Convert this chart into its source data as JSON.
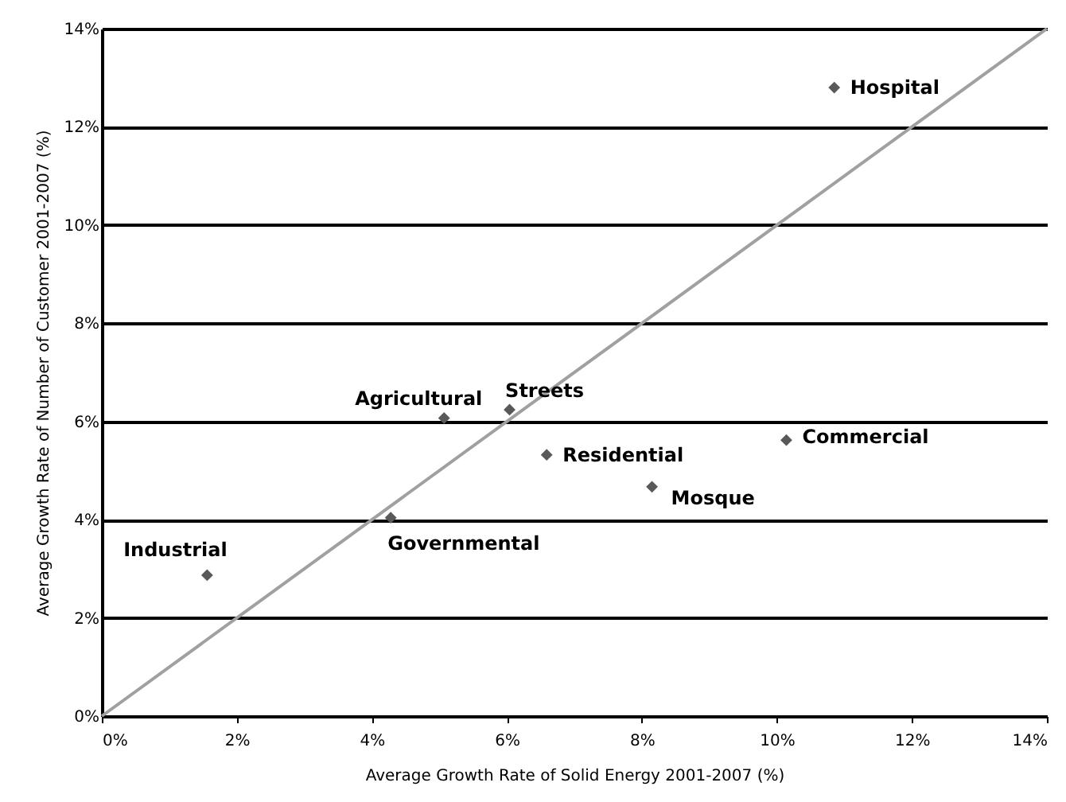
{
  "chart_data": {
    "type": "scatter",
    "xlabel": "Average Growth Rate of Solid Energy 2001-2007 (%)",
    "ylabel": "Average Growth Rate of Number of Customer 2001-2007 (%)",
    "series": [
      {
        "color": "#595959",
        "marker": "diamond",
        "x": [
          10.85,
          5.07,
          6.04,
          6.59,
          10.14,
          8.15,
          4.28,
          1.56
        ],
        "values": [
          12.8,
          6.07,
          6.24,
          5.32,
          5.62,
          4.67,
          4.04,
          2.87
        ]
      },
      {
        "type": "line",
        "color": "#a0a0a0",
        "line_style": "solid",
        "x": [
          0,
          14
        ],
        "values": [
          0,
          14
        ]
      }
    ],
    "annotations": [
      {
        "text": "Hospital",
        "x": 10.85,
        "y": 12.8
      },
      {
        "text": "Agricultural",
        "x": 5.07,
        "y": 6.07
      },
      {
        "text": "Streets",
        "x": 6.04,
        "y": 6.24
      },
      {
        "text": "Residential",
        "x": 6.59,
        "y": 5.32
      },
      {
        "text": "Commercial",
        "x": 10.14,
        "y": 5.62
      },
      {
        "text": "Mosque",
        "x": 8.15,
        "y": 4.67
      },
      {
        "text": "Governmental",
        "x": 4.28,
        "y": 4.04
      },
      {
        "text": "Industrial",
        "x": 1.56,
        "y": 2.87
      }
    ],
    "xlim": [
      0,
      14
    ],
    "ylim": [
      0,
      14
    ],
    "xticks": [
      {
        "value": 0,
        "label": "0%"
      },
      {
        "value": 2,
        "label": "2%"
      },
      {
        "value": 4,
        "label": "4%"
      },
      {
        "value": 6,
        "label": "6%"
      },
      {
        "value": 8,
        "label": "8%"
      },
      {
        "value": 10,
        "label": "10%"
      },
      {
        "value": 12,
        "label": "12%"
      },
      {
        "value": 14,
        "label": "14%"
      }
    ],
    "yticks": [
      {
        "value": 0,
        "label": "0%"
      },
      {
        "value": 2,
        "label": "2%"
      },
      {
        "value": 4,
        "label": "4%"
      },
      {
        "value": 6,
        "label": "6%"
      },
      {
        "value": 8,
        "label": "8%"
      },
      {
        "value": 10,
        "label": "10%"
      },
      {
        "value": 12,
        "label": "12%"
      },
      {
        "value": 14,
        "label": "14%"
      }
    ],
    "grid": "y"
  }
}
